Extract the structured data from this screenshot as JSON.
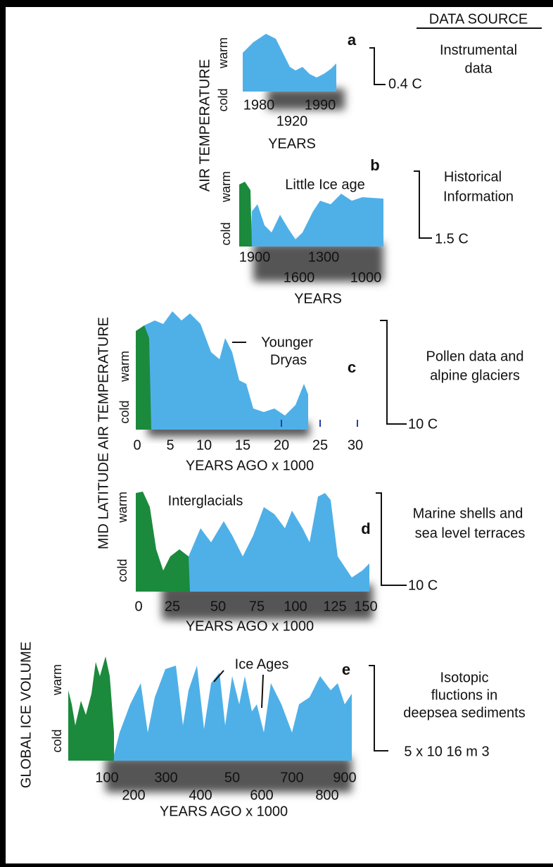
{
  "header": {
    "data_source": "DATA SOURCE"
  },
  "side_titles": [
    "AIR TEMPERATURE",
    "MID LATITUDE AIR TEMPERATURE",
    "GLOBAL ICE VOLUME"
  ],
  "panels": [
    {
      "letter": "a",
      "warm": "warm",
      "cold": "cold",
      "scale": "0.4  C",
      "source": [
        "Instrumental",
        "data"
      ],
      "ticks": [
        "1980",
        "1990",
        "1920"
      ],
      "x_label": "YEARS",
      "annotations": []
    },
    {
      "letter": "b",
      "warm": "warm",
      "cold": "cold",
      "scale": "1.5  C",
      "source": [
        "Historical",
        "Information"
      ],
      "ticks": [
        "1900",
        "1300",
        "1600",
        "1000"
      ],
      "x_label": "YEARS",
      "annotations": [
        "Little Ice age"
      ]
    },
    {
      "letter": "c",
      "warm": "warm",
      "cold": "cold",
      "scale": "10 C",
      "source": [
        "Pollen data and",
        "alpine glaciers"
      ],
      "ticks": [
        "0",
        "5",
        "10",
        "15",
        "20",
        "25",
        "30"
      ],
      "x_label": "YEARS AGO x 1000",
      "annotations": [
        "Younger",
        "Dryas"
      ]
    },
    {
      "letter": "d",
      "warm": "warm",
      "cold": "cold",
      "scale": "10 C",
      "source": [
        "Marine shells and",
        "sea level terraces"
      ],
      "ticks": [
        "0",
        "25",
        "50",
        "75",
        "100",
        "125",
        "150"
      ],
      "x_label": "YEARS AGO x 1000",
      "annotations": [
        "Interglacials"
      ]
    },
    {
      "letter": "e",
      "warm": "warm",
      "cold": "cold",
      "scale": "5 x 10 16 m 3",
      "source": [
        "Isotopic",
        "fluctions in",
        "deepsea sediments"
      ],
      "ticks": [
        "100",
        "300",
        "50",
        "700",
        "900",
        "200",
        "400",
        "600",
        "800"
      ],
      "x_label": "YEARS AGO x 1000",
      "annotations": [
        "Ice Ages"
      ]
    }
  ]
}
